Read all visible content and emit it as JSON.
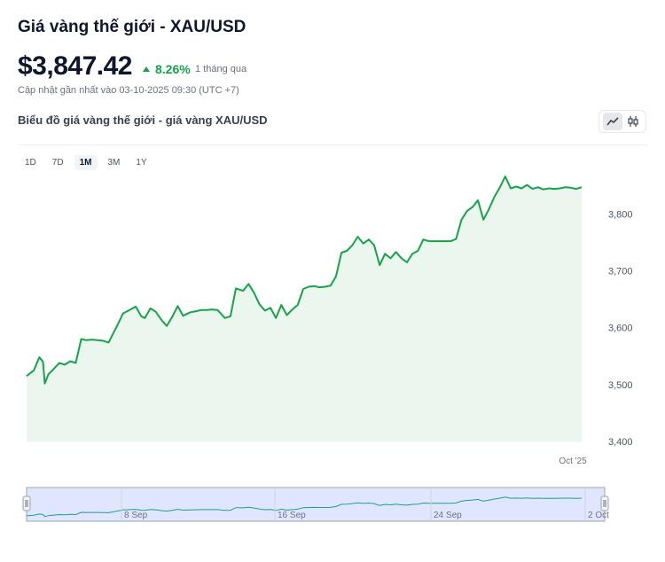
{
  "header": {
    "title": "Giá vàng thế giới - XAU/USD",
    "price": "$3,847.42",
    "change": "8.26%",
    "period": "1 tháng qua",
    "updated": "Cập nhật gần nhất vào 03-10-2025 09:30 (UTC +7)"
  },
  "chart_header": {
    "subtitle": "Biểu đồ giá vàng thế giới - giá vàng XAU/USD",
    "toggle_icons": [
      "line-chart-icon",
      "candlestick-icon"
    ]
  },
  "ranges": [
    {
      "label": "1D",
      "active": false
    },
    {
      "label": "7D",
      "active": false
    },
    {
      "label": "1M",
      "active": true
    },
    {
      "label": "3M",
      "active": false
    },
    {
      "label": "1Y",
      "active": false
    }
  ],
  "colors": {
    "line": "#16a34a",
    "area": "#eaf6ee",
    "navigator_fill": "#c7d2fe",
    "navigator_line": "#1e9e8e"
  },
  "chart_data": {
    "type": "area",
    "title": "",
    "xlabel": "",
    "ylabel": "",
    "ylim": [
      3400,
      3880
    ],
    "yticks": [
      3400,
      3500,
      3600,
      3700,
      3800
    ],
    "ytick_labels": [
      "3,400",
      "3,500",
      "3,600",
      "3,700",
      "3,800"
    ],
    "xtick_labels": [
      "Oct '25"
    ],
    "series": [
      {
        "x": [
          0.0,
          0.4,
          0.7,
          0.9,
          1.0,
          1.2,
          1.5,
          1.8,
          2.1,
          2.4,
          2.7,
          3.0,
          3.3,
          3.6,
          3.9,
          4.2,
          4.5,
          5.0,
          5.3,
          5.6,
          6.0,
          6.3,
          6.5,
          6.8,
          7.1,
          7.4,
          7.7,
          8.0,
          8.3,
          8.6,
          9.0,
          9.3,
          9.6,
          9.9,
          10.2,
          10.5,
          10.9,
          11.2,
          11.5,
          11.9,
          12.2,
          12.5,
          12.8,
          13.1,
          13.4,
          13.7,
          14.0,
          14.3,
          14.6,
          14.9,
          15.2,
          15.5,
          15.8,
          16.1,
          16.4,
          16.7,
          17.0,
          17.3,
          17.6,
          17.9,
          18.2,
          18.5,
          18.8,
          19.1,
          19.4,
          19.7,
          20.0,
          20.3,
          20.6,
          20.9,
          21.2,
          21.5,
          21.8,
          22.1,
          22.4,
          22.7,
          23.0,
          23.3,
          23.6,
          23.9,
          24.2,
          24.5,
          24.8,
          25.1,
          25.4,
          25.7,
          26.0,
          26.3,
          26.6,
          26.9,
          27.2,
          27.5,
          27.8,
          28.1,
          28.4,
          28.7,
          29.0,
          29.3,
          29.6,
          29.9,
          30.2,
          30.5
        ],
        "y": [
          3515,
          3525,
          3548,
          3540,
          3502,
          3518,
          3528,
          3538,
          3535,
          3541,
          3538,
          3580,
          3578,
          3579,
          3578,
          3577,
          3574,
          3605,
          3625,
          3630,
          3637,
          3620,
          3617,
          3634,
          3628,
          3614,
          3603,
          3619,
          3638,
          3621,
          3627,
          3629,
          3631,
          3631,
          3632,
          3631,
          3617,
          3620,
          3669,
          3665,
          3677,
          3661,
          3641,
          3630,
          3635,
          3617,
          3640,
          3622,
          3632,
          3640,
          3668,
          3672,
          3673,
          3671,
          3672,
          3674,
          3690,
          3732,
          3735,
          3745,
          3760,
          3748,
          3755,
          3745,
          3710,
          3730,
          3722,
          3733,
          3722,
          3715,
          3730,
          3735,
          3755,
          3752,
          3752,
          3752,
          3752,
          3752,
          3756,
          3790,
          3805,
          3812,
          3824,
          3790,
          3808,
          3830,
          3846,
          3866,
          3845,
          3848,
          3845,
          3851,
          3844,
          3847,
          3843,
          3845,
          3844,
          3845,
          3847,
          3846,
          3844,
          3847
        ]
      }
    ],
    "navigator": {
      "tick_labels": [
        "8 Sep",
        "16 Sep",
        "24 Sep",
        "2 Oct"
      ]
    }
  }
}
